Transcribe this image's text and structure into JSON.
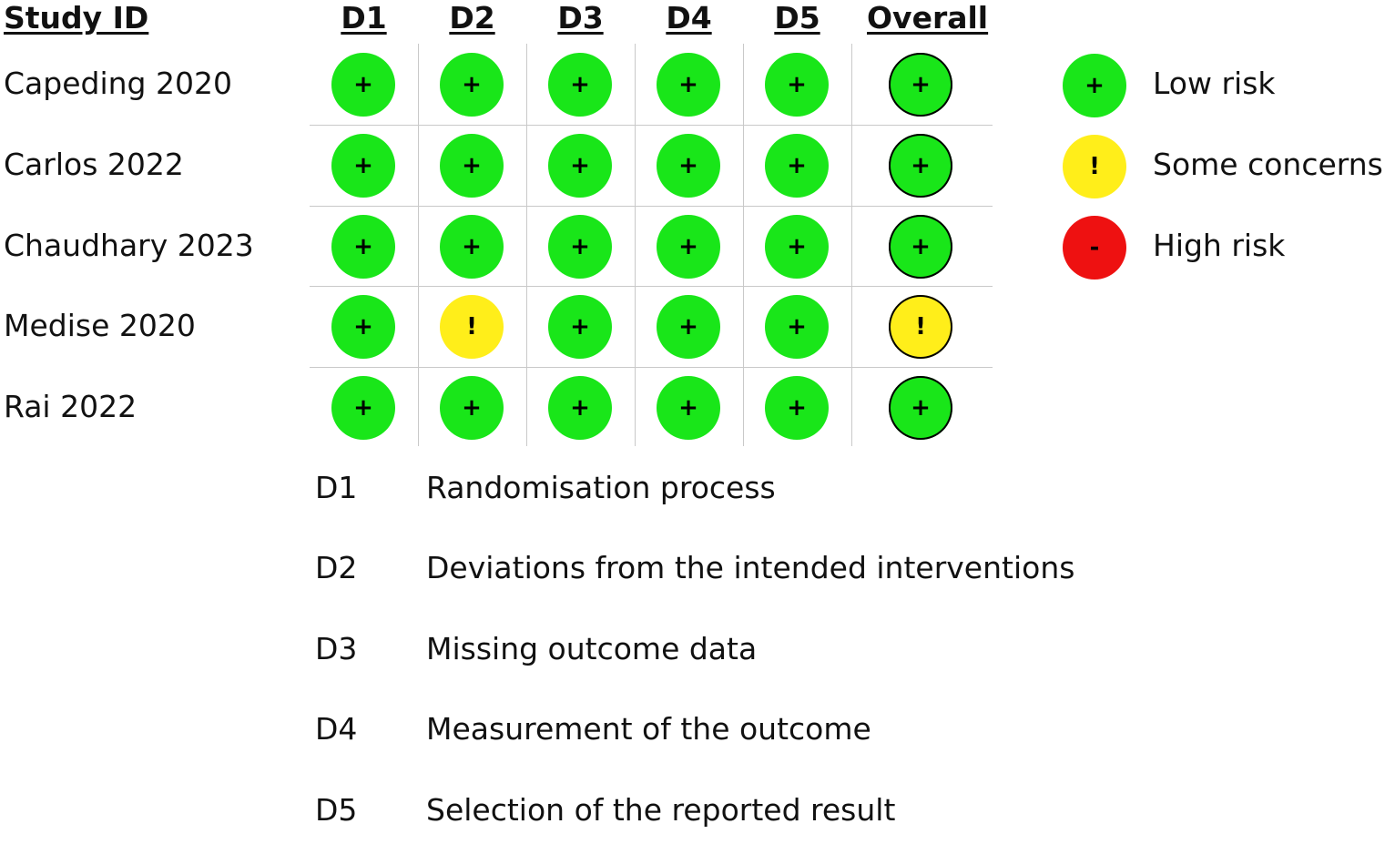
{
  "header": {
    "study_id": "Study ID",
    "domains": [
      "D1",
      "D2",
      "D3",
      "D4",
      "D5"
    ],
    "overall": "Overall"
  },
  "judgement_styles": {
    "low": {
      "symbol": "+",
      "color": "#19e619"
    },
    "some": {
      "symbol": "!",
      "color": "#ffee1a"
    },
    "high": {
      "symbol": "-",
      "color": "#ee1111"
    }
  },
  "studies": [
    {
      "name": "Capeding 2020",
      "domains": [
        "low",
        "low",
        "low",
        "low",
        "low"
      ],
      "overall": "low"
    },
    {
      "name": "Carlos 2022",
      "domains": [
        "low",
        "low",
        "low",
        "low",
        "low"
      ],
      "overall": "low"
    },
    {
      "name": "Chaudhary 2023",
      "domains": [
        "low",
        "low",
        "low",
        "low",
        "low"
      ],
      "overall": "low"
    },
    {
      "name": "Medise 2020",
      "domains": [
        "low",
        "some",
        "low",
        "low",
        "low"
      ],
      "overall": "some"
    },
    {
      "name": "Rai 2022",
      "domains": [
        "low",
        "low",
        "low",
        "low",
        "low"
      ],
      "overall": "low"
    }
  ],
  "legend": [
    {
      "key": "low",
      "label": "Low risk"
    },
    {
      "key": "some",
      "label": "Some concerns"
    },
    {
      "key": "high",
      "label": "High risk"
    }
  ],
  "definitions": [
    {
      "code": "D1",
      "text": "Randomisation process"
    },
    {
      "code": "D2",
      "text": "Deviations from the intended interventions"
    },
    {
      "code": "D3",
      "text": "Missing outcome data"
    },
    {
      "code": "D4",
      "text": "Measurement of the outcome"
    },
    {
      "code": "D5",
      "text": "Selection of the reported result"
    }
  ]
}
